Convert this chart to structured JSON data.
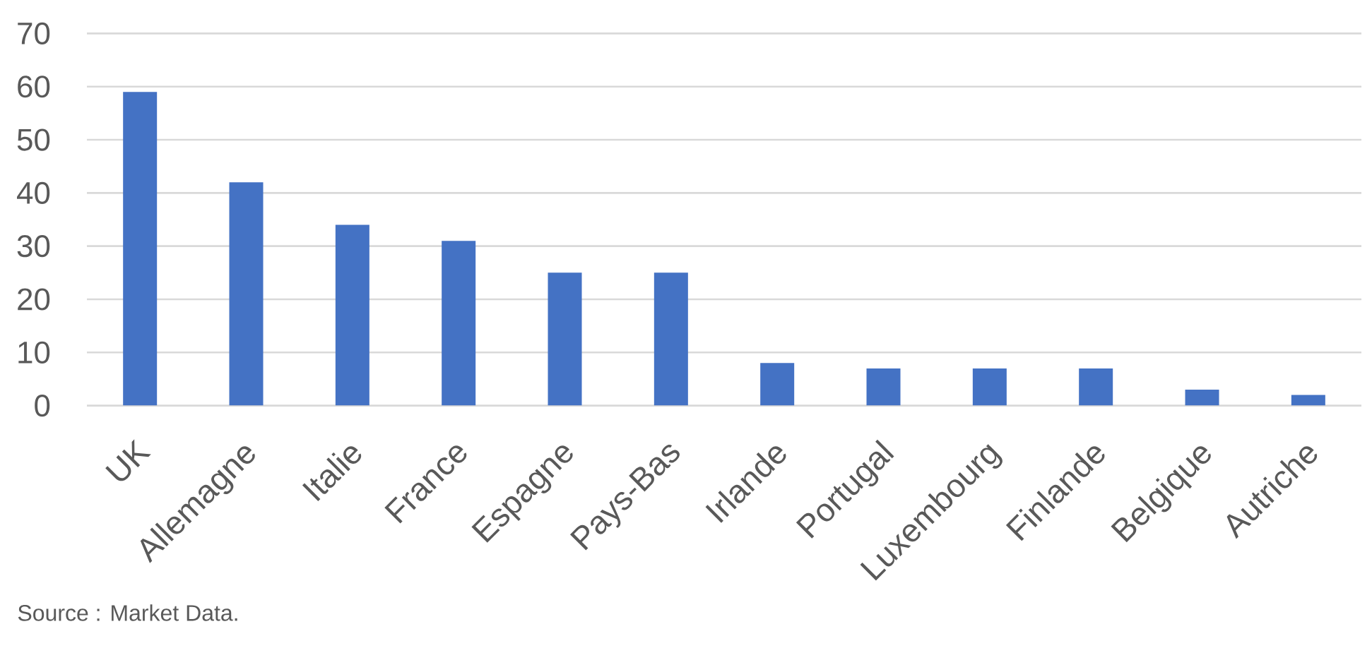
{
  "chart_data": {
    "type": "bar",
    "categories": [
      "UK",
      "Allemagne",
      "Italie",
      "France",
      "Espagne",
      "Pays-Bas",
      "Irlande",
      "Portugal",
      "Luxembourg",
      "Finlande",
      "Belgique",
      "Autriche"
    ],
    "values": [
      59,
      42,
      34,
      31,
      25,
      25,
      8,
      7,
      7,
      7,
      3,
      2
    ],
    "color": "#4472c4",
    "ylim": [
      0,
      70
    ],
    "yticks": [
      0,
      10,
      20,
      30,
      40,
      50,
      60,
      70
    ],
    "grid": "y",
    "annotations": [
      "Source : Market Data."
    ]
  }
}
